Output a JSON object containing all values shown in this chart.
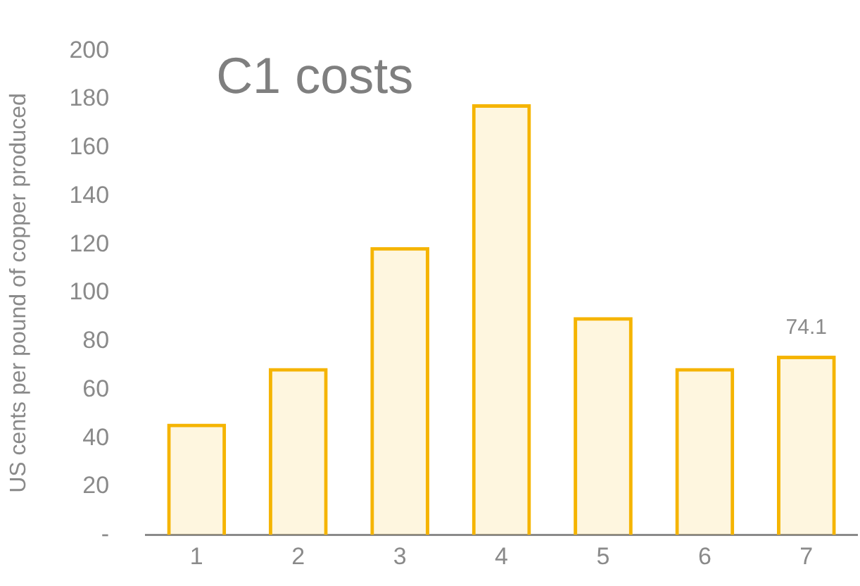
{
  "chart_data": {
    "type": "bar",
    "title": "C1 costs",
    "ylabel": "US cents per pound of copper produced",
    "categories": [
      "1",
      "2",
      "3",
      "4",
      "5",
      "6",
      "7"
    ],
    "values": [
      46,
      69,
      119,
      178,
      90,
      69,
      74.1
    ],
    "value_labels": [
      null,
      null,
      null,
      null,
      null,
      null,
      "74.1"
    ],
    "color": "#f5b400",
    "ylim": [
      0,
      200
    ],
    "yticks": [
      {
        "value": 0,
        "label": "-"
      },
      20,
      40,
      60,
      80,
      100,
      120,
      140,
      160,
      180,
      200
    ],
    "grid": false,
    "legend": false
  }
}
